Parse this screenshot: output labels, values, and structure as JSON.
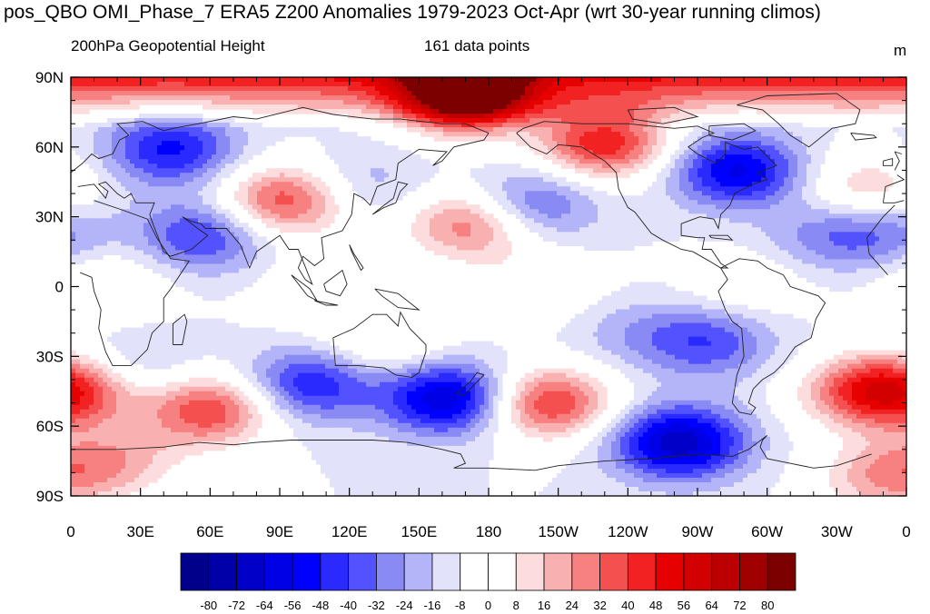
{
  "title": "pos_QBO OMI_Phase_7 ERA5 Z200 Anomalies 1979-2023 Oct-Apr (wrt 30-year running climos)",
  "subtitle_left": "200hPa Geopotential Height",
  "subtitle_center": "161 data points",
  "units": "m",
  "colors": {
    "levels": [
      "#00008b",
      "#0000a8",
      "#0000c8",
      "#0000e6",
      "#0000ff",
      "#2a2aff",
      "#5252ff",
      "#8a8af5",
      "#b4b4f8",
      "#e2e2fb",
      "#ffffff",
      "#ffffff",
      "#fcdcdc",
      "#f9b0b0",
      "#f78080",
      "#f55050",
      "#f22222",
      "#e60000",
      "#d20000",
      "#bc0000",
      "#a00000",
      "#7d0000"
    ]
  },
  "chart_data": {
    "type": "heatmap",
    "projection": "cylindrical-equidistant",
    "lon_range": [
      0,
      360
    ],
    "lat_range": [
      -90,
      90
    ],
    "lat_ticks": [
      "90N",
      "60N",
      "30N",
      "0",
      "30S",
      "60S",
      "90S"
    ],
    "lon_ticks": [
      "0",
      "30E",
      "60E",
      "90E",
      "120E",
      "150E",
      "180",
      "150W",
      "120W",
      "90W",
      "60W",
      "30W",
      "0"
    ],
    "colorbar_labels": [
      "-80",
      "-72",
      "-64",
      "-56",
      "-48",
      "-40",
      "-32",
      "-24",
      "-16",
      "-8",
      "0",
      "8",
      "16",
      "24",
      "32",
      "40",
      "48",
      "56",
      "64",
      "72",
      "80"
    ],
    "features": [
      {
        "kind": "positive",
        "lon": 170,
        "lat": 82,
        "amp": 85
      },
      {
        "kind": "positive",
        "lon": 230,
        "lat": 62,
        "amp": 55
      },
      {
        "kind": "negative",
        "lon": 287,
        "lat": 50,
        "amp": -50
      },
      {
        "kind": "negative",
        "lon": 43,
        "lat": 59,
        "amp": -42
      },
      {
        "kind": "positive",
        "lon": 92,
        "lat": 37,
        "amp": 48
      },
      {
        "kind": "negative",
        "lon": 125,
        "lat": 44,
        "amp": -15
      },
      {
        "kind": "positive",
        "lon": 173,
        "lat": 27,
        "amp": 42
      },
      {
        "kind": "negative",
        "lon": 198,
        "lat": 35,
        "amp": -32
      },
      {
        "kind": "negative",
        "lon": 57,
        "lat": 22,
        "amp": -35
      },
      {
        "kind": "positive",
        "lon": 343,
        "lat": 42,
        "amp": 25
      },
      {
        "kind": "negative",
        "lon": 353,
        "lat": 23,
        "amp": -18
      },
      {
        "kind": "negative",
        "lon": 328,
        "lat": 22,
        "amp": -20
      },
      {
        "kind": "negative",
        "lon": 163,
        "lat": -48,
        "amp": -58
      },
      {
        "kind": "negative",
        "lon": 262,
        "lat": -67,
        "amp": -62
      },
      {
        "kind": "positive",
        "lon": 205,
        "lat": -50,
        "amp": 52
      },
      {
        "kind": "positive",
        "lon": 60,
        "lat": -53,
        "amp": 48
      },
      {
        "kind": "positive",
        "lon": 343,
        "lat": -45,
        "amp": 45
      },
      {
        "kind": "positive",
        "lon": 3,
        "lat": -45,
        "amp": 35
      },
      {
        "kind": "negative",
        "lon": 103,
        "lat": -42,
        "amp": -40
      },
      {
        "kind": "negative",
        "lon": 275,
        "lat": -24,
        "amp": -30
      },
      {
        "kind": "negative",
        "lon": 242,
        "lat": -20,
        "amp": -12
      },
      {
        "kind": "positive",
        "lon": 135,
        "lat": -25,
        "amp": 18
      },
      {
        "kind": "negative",
        "lon": 28,
        "lat": -35,
        "amp": -14
      },
      {
        "kind": "positive",
        "lon": 15,
        "lat": 2,
        "amp": 16
      },
      {
        "kind": "positive",
        "lon": 290,
        "lat": 0,
        "amp": 12
      },
      {
        "kind": "positive",
        "lon": 200,
        "lat": 0,
        "amp": 14
      },
      {
        "kind": "positive",
        "lon": 110,
        "lat": -2,
        "amp": 12
      },
      {
        "kind": "positive",
        "lon": 20,
        "lat": -75,
        "amp": 25
      },
      {
        "kind": "positive",
        "lon": 350,
        "lat": -82,
        "amp": 30
      }
    ]
  }
}
